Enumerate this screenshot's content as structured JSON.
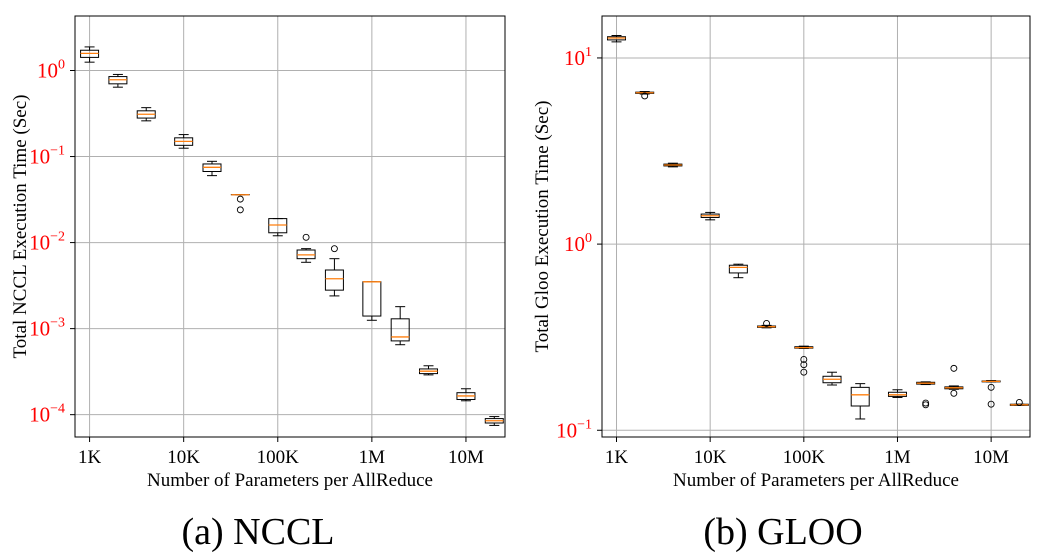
{
  "colors": {
    "tick_label": "#ff0000",
    "median": "#ff7f0e",
    "box": "#000000",
    "grid": "#b0b0b0"
  },
  "chart_data": [
    {
      "type": "box",
      "caption": "(a) NCCL",
      "xlabel": "Number of Parameters per AllReduce",
      "ylabel": "Total NCCL Execution Time (Sec)",
      "xscale": "log",
      "yscale": "log",
      "xlim": [
        700,
        26000000
      ],
      "ylim": [
        5.5e-05,
        4.3
      ],
      "xticks": [
        1000,
        10000,
        100000,
        1000000,
        10000000
      ],
      "xticklabels": [
        "1K",
        "10K",
        "100K",
        "1M",
        "10M"
      ],
      "yticks": [
        0.0001,
        0.001,
        0.01,
        0.1,
        1
      ],
      "yticklabels": [
        {
          "base": "10",
          "exp": "−4"
        },
        {
          "base": "10",
          "exp": "−3"
        },
        {
          "base": "10",
          "exp": "−2"
        },
        {
          "base": "10",
          "exp": "−1"
        },
        {
          "base": "10",
          "exp": "0"
        }
      ],
      "grid": true,
      "boxes": [
        {
          "x": 1000,
          "whislo": 1.25,
          "q1": 1.42,
          "med": 1.58,
          "q3": 1.72,
          "whishi": 1.88,
          "fliers": []
        },
        {
          "x": 2000,
          "whislo": 0.64,
          "q1": 0.7,
          "med": 0.78,
          "q3": 0.85,
          "whishi": 0.9,
          "fliers": []
        },
        {
          "x": 4000,
          "whislo": 0.26,
          "q1": 0.28,
          "med": 0.31,
          "q3": 0.34,
          "whishi": 0.37,
          "fliers": []
        },
        {
          "x": 10000,
          "whislo": 0.125,
          "q1": 0.135,
          "med": 0.15,
          "q3": 0.165,
          "whishi": 0.18,
          "fliers": []
        },
        {
          "x": 20000,
          "whislo": 0.06,
          "q1": 0.067,
          "med": 0.075,
          "q3": 0.082,
          "whishi": 0.088,
          "fliers": []
        },
        {
          "x": 40000,
          "whislo": 0.036,
          "q1": 0.036,
          "med": 0.036,
          "q3": 0.036,
          "whishi": 0.036,
          "fliers": [
            0.032,
            0.024
          ]
        },
        {
          "x": 100000,
          "whislo": 0.012,
          "q1": 0.013,
          "med": 0.016,
          "q3": 0.019,
          "whishi": 0.019,
          "fliers": []
        },
        {
          "x": 200000,
          "whislo": 0.0059,
          "q1": 0.0065,
          "med": 0.0072,
          "q3": 0.0082,
          "whishi": 0.0085,
          "fliers": [
            0.0115
          ]
        },
        {
          "x": 400000,
          "whislo": 0.0024,
          "q1": 0.0028,
          "med": 0.0038,
          "q3": 0.0048,
          "whishi": 0.0065,
          "fliers": [
            0.0085
          ]
        },
        {
          "x": 1000000,
          "whislo": 0.00125,
          "q1": 0.0014,
          "med": 0.0035,
          "q3": 0.0035,
          "whishi": 0.0035,
          "fliers": []
        },
        {
          "x": 2000000,
          "whislo": 0.00065,
          "q1": 0.00072,
          "med": 0.0008,
          "q3": 0.0013,
          "whishi": 0.0018,
          "fliers": []
        },
        {
          "x": 4000000,
          "whislo": 0.00029,
          "q1": 0.0003,
          "med": 0.00032,
          "q3": 0.00034,
          "whishi": 0.00037,
          "fliers": []
        },
        {
          "x": 10000000,
          "whislo": 0.000145,
          "q1": 0.00015,
          "med": 0.000165,
          "q3": 0.00018,
          "whishi": 0.0002,
          "fliers": []
        },
        {
          "x": 20000000,
          "whislo": 7.5e-05,
          "q1": 8e-05,
          "med": 8.5e-05,
          "q3": 9e-05,
          "whishi": 9.5e-05,
          "fliers": []
        }
      ]
    },
    {
      "type": "box",
      "caption": "(b) GLOO",
      "xlabel": "Number of Parameters per AllReduce",
      "ylabel": "Total Gloo Execution Time (Sec)",
      "xscale": "log",
      "yscale": "log",
      "xlim": [
        700,
        26000000
      ],
      "ylim": [
        0.092,
        16.8
      ],
      "xticks": [
        1000,
        10000,
        100000,
        1000000,
        10000000
      ],
      "xticklabels": [
        "1K",
        "10K",
        "100K",
        "1M",
        "10M"
      ],
      "yticks": [
        0.1,
        1,
        10
      ],
      "yticklabels": [
        {
          "base": "10",
          "exp": "−1"
        },
        {
          "base": "10",
          "exp": "0"
        },
        {
          "base": "10",
          "exp": "1"
        }
      ],
      "grid": true,
      "boxes": [
        {
          "x": 1000,
          "whislo": 12.2,
          "q1": 12.5,
          "med": 12.8,
          "q3": 13.0,
          "whishi": 13.2,
          "fliers": []
        },
        {
          "x": 2000,
          "whislo": 6.4,
          "q1": 6.45,
          "med": 6.5,
          "q3": 6.55,
          "whishi": 6.6,
          "fliers": [
            6.25
          ]
        },
        {
          "x": 4000,
          "whislo": 2.6,
          "q1": 2.63,
          "med": 2.66,
          "q3": 2.69,
          "whishi": 2.72,
          "fliers": []
        },
        {
          "x": 10000,
          "whislo": 1.35,
          "q1": 1.39,
          "med": 1.42,
          "q3": 1.45,
          "whishi": 1.48,
          "fliers": []
        },
        {
          "x": 20000,
          "whislo": 0.66,
          "q1": 0.7,
          "med": 0.75,
          "q3": 0.77,
          "whishi": 0.78,
          "fliers": []
        },
        {
          "x": 40000,
          "whislo": 0.355,
          "q1": 0.357,
          "med": 0.36,
          "q3": 0.363,
          "whishi": 0.366,
          "fliers": [
            0.375
          ]
        },
        {
          "x": 100000,
          "whislo": 0.275,
          "q1": 0.276,
          "med": 0.278,
          "q3": 0.281,
          "whishi": 0.283,
          "fliers": [
            0.24,
            0.225,
            0.205
          ]
        },
        {
          "x": 200000,
          "whislo": 0.175,
          "q1": 0.18,
          "med": 0.188,
          "q3": 0.195,
          "whishi": 0.205,
          "fliers": []
        },
        {
          "x": 400000,
          "whislo": 0.115,
          "q1": 0.135,
          "med": 0.155,
          "q3": 0.17,
          "whishi": 0.178,
          "fliers": []
        },
        {
          "x": 1000000,
          "whislo": 0.15,
          "q1": 0.152,
          "med": 0.155,
          "q3": 0.16,
          "whishi": 0.165,
          "fliers": []
        },
        {
          "x": 2000000,
          "whislo": 0.176,
          "q1": 0.177,
          "med": 0.179,
          "q3": 0.181,
          "whishi": 0.182,
          "fliers": [
            0.14,
            0.137
          ]
        },
        {
          "x": 4000000,
          "whislo": 0.166,
          "q1": 0.167,
          "med": 0.169,
          "q3": 0.171,
          "whishi": 0.173,
          "fliers": [
            0.215,
            0.158
          ]
        },
        {
          "x": 10000000,
          "whislo": 0.182,
          "q1": 0.182,
          "med": 0.183,
          "q3": 0.184,
          "whishi": 0.185,
          "fliers": [
            0.17,
            0.138
          ]
        },
        {
          "x": 20000000,
          "whislo": 0.136,
          "q1": 0.136,
          "med": 0.137,
          "q3": 0.138,
          "whishi": 0.138,
          "fliers": [
            0.141
          ]
        }
      ]
    }
  ]
}
